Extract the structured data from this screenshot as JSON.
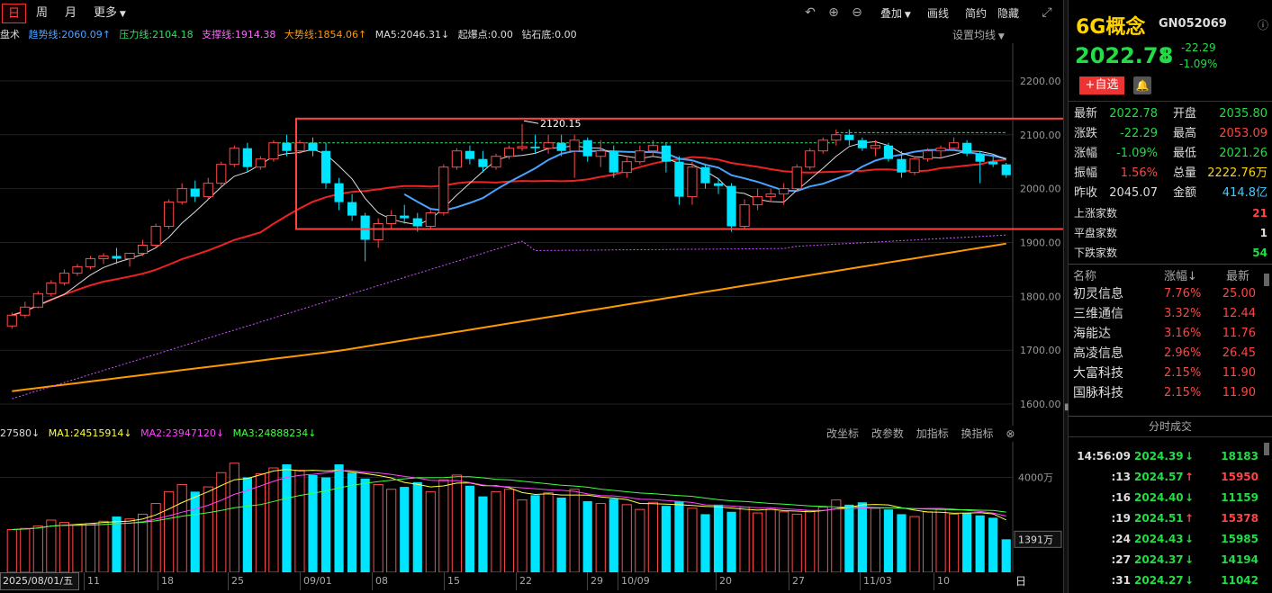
{
  "toolbar": {
    "tabs": [
      "日",
      "周",
      "月"
    ],
    "more": "更多",
    "right_buttons": [
      "叠加",
      "画线",
      "简约",
      "隐藏"
    ]
  },
  "indicators": {
    "prefix": "盘术",
    "trend": "趋势线:2060.09↑",
    "pressure": "压力线:2104.18",
    "support": "支撑线:1914.38",
    "bigtrend": "大势线:1854.06↑",
    "ma5": "MA5:2046.31↓",
    "burst": "起爆点:0.00",
    "diamond": "钻石底:0.00",
    "setting": "设置均线",
    "colors": {
      "trend": "#4aa3ff",
      "pressure": "#33dd66",
      "support": "#ff66ff",
      "bigtrend": "#ff9900"
    }
  },
  "volume": {
    "first": "27580↓",
    "ma1": "MA1:24515914↓",
    "ma2": "MA2:23947120↓",
    "ma3": "MA3:24888234↓",
    "tools": [
      "改坐标",
      "改参数",
      "加指标",
      "换指标"
    ],
    "axis_label": "4000万",
    "current_label": "1391万"
  },
  "date_axis": {
    "start": "2025/08/01/五",
    "ticks": [
      "11",
      "18",
      "25",
      "09/01",
      "08",
      "15",
      "22",
      "29",
      "10/09",
      "20",
      "27",
      "11/03",
      "10"
    ],
    "right": "日线"
  },
  "price_axis": [
    "2200.00",
    "2100.00",
    "2000.00",
    "1900.00",
    "1800.00",
    "1700.00",
    "1600.00"
  ],
  "annotation": "2120.15",
  "chart_data": {
    "type": "candlestick",
    "ylim": [
      1560,
      2270
    ],
    "x_count": 77,
    "ohlc": [
      [
        1745,
        1770,
        1740,
        1765
      ],
      [
        1765,
        1790,
        1760,
        1780
      ],
      [
        1780,
        1810,
        1778,
        1805
      ],
      [
        1805,
        1830,
        1800,
        1825
      ],
      [
        1825,
        1850,
        1820,
        1843
      ],
      [
        1843,
        1860,
        1838,
        1855
      ],
      [
        1855,
        1875,
        1850,
        1870
      ],
      [
        1870,
        1880,
        1860,
        1875
      ],
      [
        1875,
        1890,
        1860,
        1870
      ],
      [
        1870,
        1880,
        1855,
        1880
      ],
      [
        1880,
        1905,
        1875,
        1895
      ],
      [
        1895,
        1935,
        1890,
        1930
      ],
      [
        1930,
        1980,
        1925,
        1975
      ],
      [
        1975,
        2010,
        1970,
        2000
      ],
      [
        2000,
        2015,
        1975,
        1985
      ],
      [
        1985,
        2020,
        1980,
        2010
      ],
      [
        2010,
        2050,
        2005,
        2045
      ],
      [
        2045,
        2080,
        2040,
        2075
      ],
      [
        2075,
        2085,
        2030,
        2040
      ],
      [
        2040,
        2060,
        2035,
        2055
      ],
      [
        2055,
        2090,
        2050,
        2085
      ],
      [
        2085,
        2100,
        2060,
        2070
      ],
      [
        2070,
        2090,
        2065,
        2085
      ],
      [
        2085,
        2095,
        2060,
        2070
      ],
      [
        2070,
        2085,
        2000,
        2010
      ],
      [
        2010,
        2020,
        1960,
        1975
      ],
      [
        1975,
        1990,
        1940,
        1950
      ],
      [
        1950,
        1955,
        1865,
        1905
      ],
      [
        1905,
        1945,
        1890,
        1935
      ],
      [
        1935,
        1960,
        1925,
        1950
      ],
      [
        1950,
        1970,
        1935,
        1945
      ],
      [
        1945,
        1955,
        1920,
        1930
      ],
      [
        1930,
        1960,
        1925,
        1955
      ],
      [
        1955,
        2045,
        1950,
        2040
      ],
      [
        2040,
        2075,
        2035,
        2070
      ],
      [
        2070,
        2080,
        2045,
        2055
      ],
      [
        2055,
        2070,
        2030,
        2040
      ],
      [
        2040,
        2065,
        2035,
        2060
      ],
      [
        2060,
        2080,
        2055,
        2075
      ],
      [
        2075,
        2120,
        2070,
        2078
      ],
      [
        2078,
        2100,
        2065,
        2075
      ],
      [
        2075,
        2100,
        2065,
        2085
      ],
      [
        2085,
        2100,
        2060,
        2070
      ],
      [
        2070,
        2100,
        2020,
        2090
      ],
      [
        2090,
        2095,
        2050,
        2060
      ],
      [
        2060,
        2090,
        2040,
        2070
      ],
      [
        2070,
        2080,
        2020,
        2030
      ],
      [
        2030,
        2060,
        2020,
        2050
      ],
      [
        2050,
        2080,
        2045,
        2070
      ],
      [
        2070,
        2090,
        2060,
        2080
      ],
      [
        2080,
        2085,
        2030,
        2050
      ],
      [
        2050,
        2060,
        1970,
        1985
      ],
      [
        1985,
        2050,
        1970,
        2040
      ],
      [
        2040,
        2045,
        2000,
        2010
      ],
      [
        2010,
        2020,
        1990,
        2005
      ],
      [
        2005,
        2010,
        1920,
        1930
      ],
      [
        1930,
        1980,
        1925,
        1970
      ],
      [
        1970,
        2000,
        1960,
        1985
      ],
      [
        1985,
        2000,
        1975,
        1990
      ],
      [
        1990,
        2010,
        1970,
        2000
      ],
      [
        2000,
        2045,
        1995,
        2040
      ],
      [
        2040,
        2075,
        2035,
        2070
      ],
      [
        2070,
        2095,
        2065,
        2090
      ],
      [
        2090,
        2110,
        2080,
        2100
      ],
      [
        2100,
        2110,
        2080,
        2090
      ],
      [
        2090,
        2095,
        2070,
        2075
      ],
      [
        2075,
        2090,
        2060,
        2080
      ],
      [
        2080,
        2085,
        2050,
        2055
      ],
      [
        2055,
        2070,
        2020,
        2030
      ],
      [
        2030,
        2060,
        2025,
        2055
      ],
      [
        2055,
        2075,
        2050,
        2070
      ],
      [
        2070,
        2080,
        2055,
        2075
      ],
      [
        2075,
        2095,
        2070,
        2085
      ],
      [
        2085,
        2090,
        2060,
        2065
      ],
      [
        2065,
        2070,
        2010,
        2050
      ],
      [
        2050,
        2060,
        2040,
        2045
      ],
      [
        2045,
        2048,
        2020,
        2025
      ]
    ],
    "volumes": [
      1800,
      1850,
      1950,
      2200,
      2100,
      2000,
      2050,
      2150,
      2350,
      2250,
      2450,
      2900,
      3400,
      3700,
      3400,
      3600,
      4200,
      4600,
      4000,
      4150,
      4400,
      4550,
      4300,
      4100,
      4000,
      4550,
      4200,
      3950,
      3700,
      3500,
      3600,
      3800,
      3400,
      3900,
      4100,
      3650,
      3200,
      3400,
      3500,
      3050,
      3250,
      3350,
      3150,
      3500,
      3000,
      2900,
      3100,
      2850,
      2650,
      2950,
      2800,
      3000,
      2700,
      2450,
      2850,
      2550,
      2750,
      2500,
      2650,
      2550,
      2450,
      2600,
      2750,
      3050,
      2850,
      2950,
      2700,
      2650,
      2450,
      2350,
      2550,
      2650,
      2450,
      2500,
      2400,
      2300,
      1391
    ],
    "vol_ylim": [
      0,
      5500
    ]
  },
  "right_panel": {
    "name": "6G概念",
    "code": "GN052069",
    "price": "2022.78",
    "arrow": "↓",
    "change": "-22.29",
    "change_pct": "-1.09%",
    "add_btn": "+自选",
    "stats": [
      {
        "l1": "最新",
        "v1": "2022.78",
        "c1": "g",
        "l2": "开盘",
        "v2": "2035.80",
        "c2": "g"
      },
      {
        "l1": "涨跌",
        "v1": "-22.29",
        "c1": "g",
        "l2": "最高",
        "v2": "2053.09",
        "c2": "r"
      },
      {
        "l1": "涨幅",
        "v1": "-1.09%",
        "c1": "g",
        "l2": "最低",
        "v2": "2021.26",
        "c2": "g"
      },
      {
        "l1": "振幅",
        "v1": "1.56%",
        "c1": "r",
        "l2": "总量",
        "v2": "2222.76万",
        "c2": "y"
      },
      {
        "l1": "昨收",
        "v1": "2045.07",
        "c1": "w",
        "l2": "金额",
        "v2": "414.8亿",
        "c2": "c"
      }
    ],
    "counts": [
      {
        "label": "上涨家数",
        "value": "21",
        "c": "r"
      },
      {
        "label": "平盘家数",
        "value": "1",
        "c": "w"
      },
      {
        "label": "下跌家数",
        "value": "54",
        "c": "g"
      }
    ],
    "list_header": [
      "名称",
      "涨幅↓",
      "最新"
    ],
    "list": [
      {
        "name": "初灵信息",
        "pct": "7.76%",
        "price": "25.00"
      },
      {
        "name": "三维通信",
        "pct": "3.32%",
        "price": "12.44"
      },
      {
        "name": "海能达",
        "pct": "3.16%",
        "price": "11.76"
      },
      {
        "name": "高凌信息",
        "pct": "2.96%",
        "price": "26.45"
      },
      {
        "name": "大富科技",
        "pct": "2.15%",
        "price": "11.90"
      },
      {
        "name": "国脉科技",
        "pct": "2.15%",
        "price": "11.90"
      }
    ],
    "ticks_title": "分时成交",
    "ticks": [
      {
        "t": "14:56:09",
        "p": "2024.39",
        "d": "↓",
        "dc": "g",
        "v": "18183",
        "vc": "g"
      },
      {
        "t": ":13",
        "p": "2024.57",
        "d": "↑",
        "dc": "r",
        "v": "15950",
        "vc": "r"
      },
      {
        "t": ":16",
        "p": "2024.40",
        "d": "↓",
        "dc": "g",
        "v": "11159",
        "vc": "g"
      },
      {
        "t": ":19",
        "p": "2024.51",
        "d": "↑",
        "dc": "r",
        "v": "15378",
        "vc": "r"
      },
      {
        "t": ":24",
        "p": "2024.43",
        "d": "↓",
        "dc": "g",
        "v": "15985",
        "vc": "g"
      },
      {
        "t": ":27",
        "p": "2024.37",
        "d": "↓",
        "dc": "g",
        "v": "14194",
        "vc": "g"
      },
      {
        "t": ":31",
        "p": "2024.27",
        "d": "↓",
        "dc": "g",
        "v": "11042",
        "vc": "g"
      }
    ]
  }
}
